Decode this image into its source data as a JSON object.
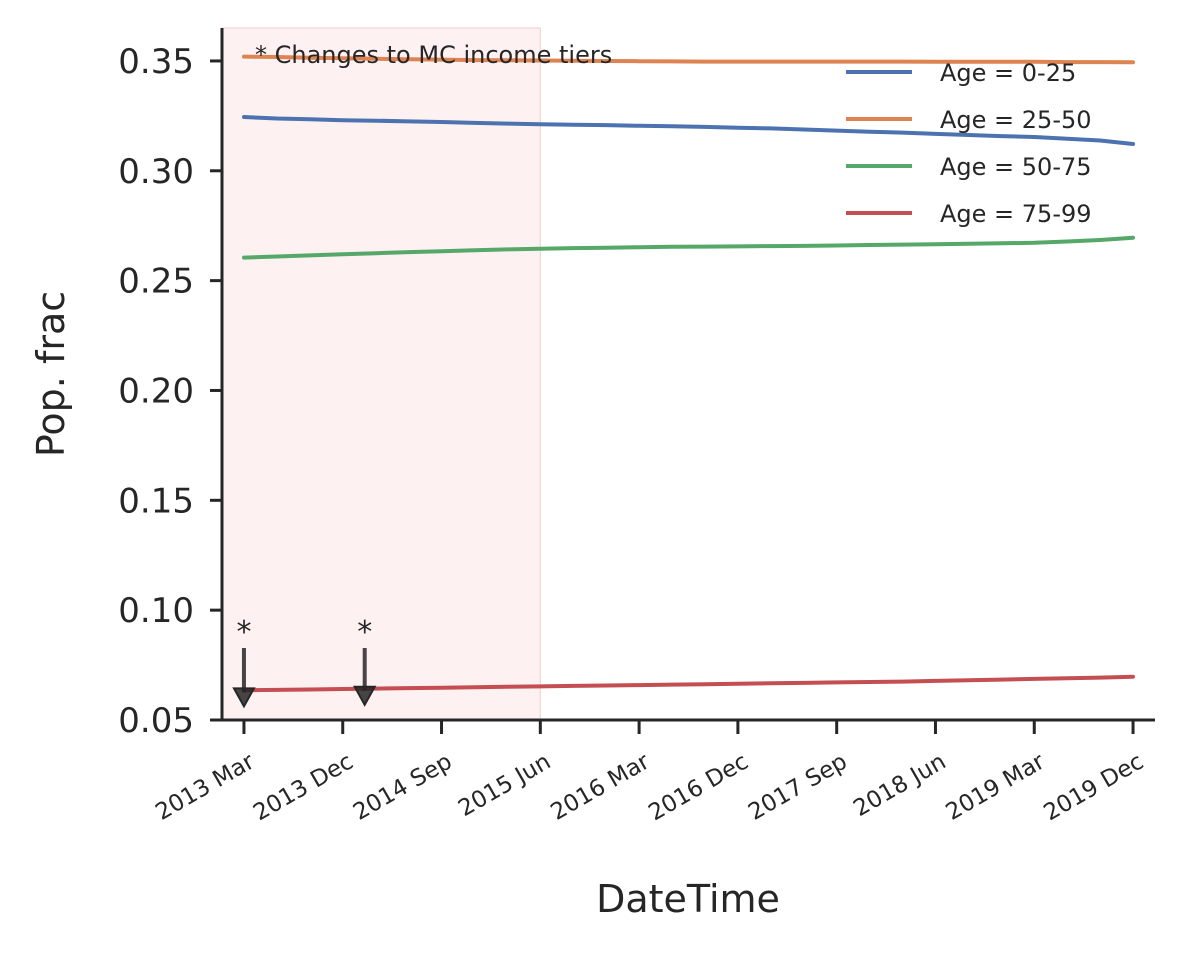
{
  "chart_data": {
    "type": "line",
    "title": "",
    "xlabel": "DateTime",
    "ylabel": "Pop. frac",
    "x_tick_labels": [
      "2013 Mar",
      "2013 Dec",
      "2014 Sep",
      "2015 Jun",
      "2016 Mar",
      "2016 Dec",
      "2017 Sep",
      "2018 Jun",
      "2019 Mar",
      "2019 Dec"
    ],
    "y_tick_labels": [
      "0.05",
      "0.10",
      "0.15",
      "0.20",
      "0.25",
      "0.30",
      "0.35"
    ],
    "ylim": [
      0.05,
      0.365
    ],
    "xlim": [
      "2013-01",
      "2020-02"
    ],
    "x": [
      "2013-03",
      "2013-06",
      "2013-09",
      "2013-12",
      "2014-03",
      "2014-06",
      "2014-09",
      "2014-12",
      "2015-03",
      "2015-06",
      "2015-09",
      "2015-12",
      "2016-03",
      "2016-06",
      "2016-09",
      "2016-12",
      "2017-03",
      "2017-06",
      "2017-09",
      "2017-12",
      "2018-03",
      "2018-06",
      "2018-09",
      "2018-12",
      "2019-03",
      "2019-06",
      "2019-09",
      "2019-12"
    ],
    "series": [
      {
        "name": "Age = 0-25",
        "color": "#4c72b0",
        "values": [
          0.3245,
          0.3238,
          0.3235,
          0.323,
          0.3228,
          0.3225,
          0.3222,
          0.3218,
          0.3215,
          0.3212,
          0.321,
          0.3208,
          0.3205,
          0.3203,
          0.32,
          0.3196,
          0.3193,
          0.3188,
          0.3183,
          0.3178,
          0.3174,
          0.3168,
          0.3163,
          0.3158,
          0.3154,
          0.3146,
          0.3138,
          0.3122
        ]
      },
      {
        "name": "Age = 25-50",
        "color": "#dd8452",
        "values": [
          0.352,
          0.3518,
          0.3515,
          0.3512,
          0.351,
          0.3508,
          0.3506,
          0.3504,
          0.3503,
          0.3502,
          0.3501,
          0.35,
          0.3499,
          0.3498,
          0.3497,
          0.3497,
          0.3497,
          0.3497,
          0.3497,
          0.3497,
          0.3497,
          0.3496,
          0.3496,
          0.3496,
          0.3496,
          0.3495,
          0.3495,
          0.3494
        ]
      },
      {
        "name": "Age = 50-75",
        "color": "#55a868",
        "values": [
          0.2605,
          0.261,
          0.2615,
          0.262,
          0.2625,
          0.263,
          0.2634,
          0.2638,
          0.2642,
          0.2645,
          0.2648,
          0.265,
          0.2652,
          0.2654,
          0.2655,
          0.2656,
          0.2657,
          0.2658,
          0.266,
          0.2662,
          0.2664,
          0.2666,
          0.2668,
          0.267,
          0.2672,
          0.2678,
          0.2685,
          0.2695
        ]
      },
      {
        "name": "Age = 75-99",
        "color": "#c44e52",
        "values": [
          0.0635,
          0.0637,
          0.0639,
          0.0641,
          0.0643,
          0.0645,
          0.0647,
          0.0649,
          0.0651,
          0.0653,
          0.0655,
          0.0657,
          0.0659,
          0.0661,
          0.0663,
          0.0665,
          0.0667,
          0.0669,
          0.0671,
          0.0673,
          0.0675,
          0.0678,
          0.0681,
          0.0684,
          0.0687,
          0.069,
          0.0693,
          0.0697
        ]
      }
    ],
    "shaded_region": {
      "start": "2013-01",
      "end": "2015-06",
      "color": "#fde8e8"
    },
    "annotations": [
      {
        "text": "*",
        "x": "2013-03",
        "y": 0.0635
      },
      {
        "text": "*",
        "x": "2014-02",
        "y": 0.0642
      }
    ],
    "note": "* Changes to MC income tiers",
    "legend_position": "top-right",
    "grid": false
  }
}
